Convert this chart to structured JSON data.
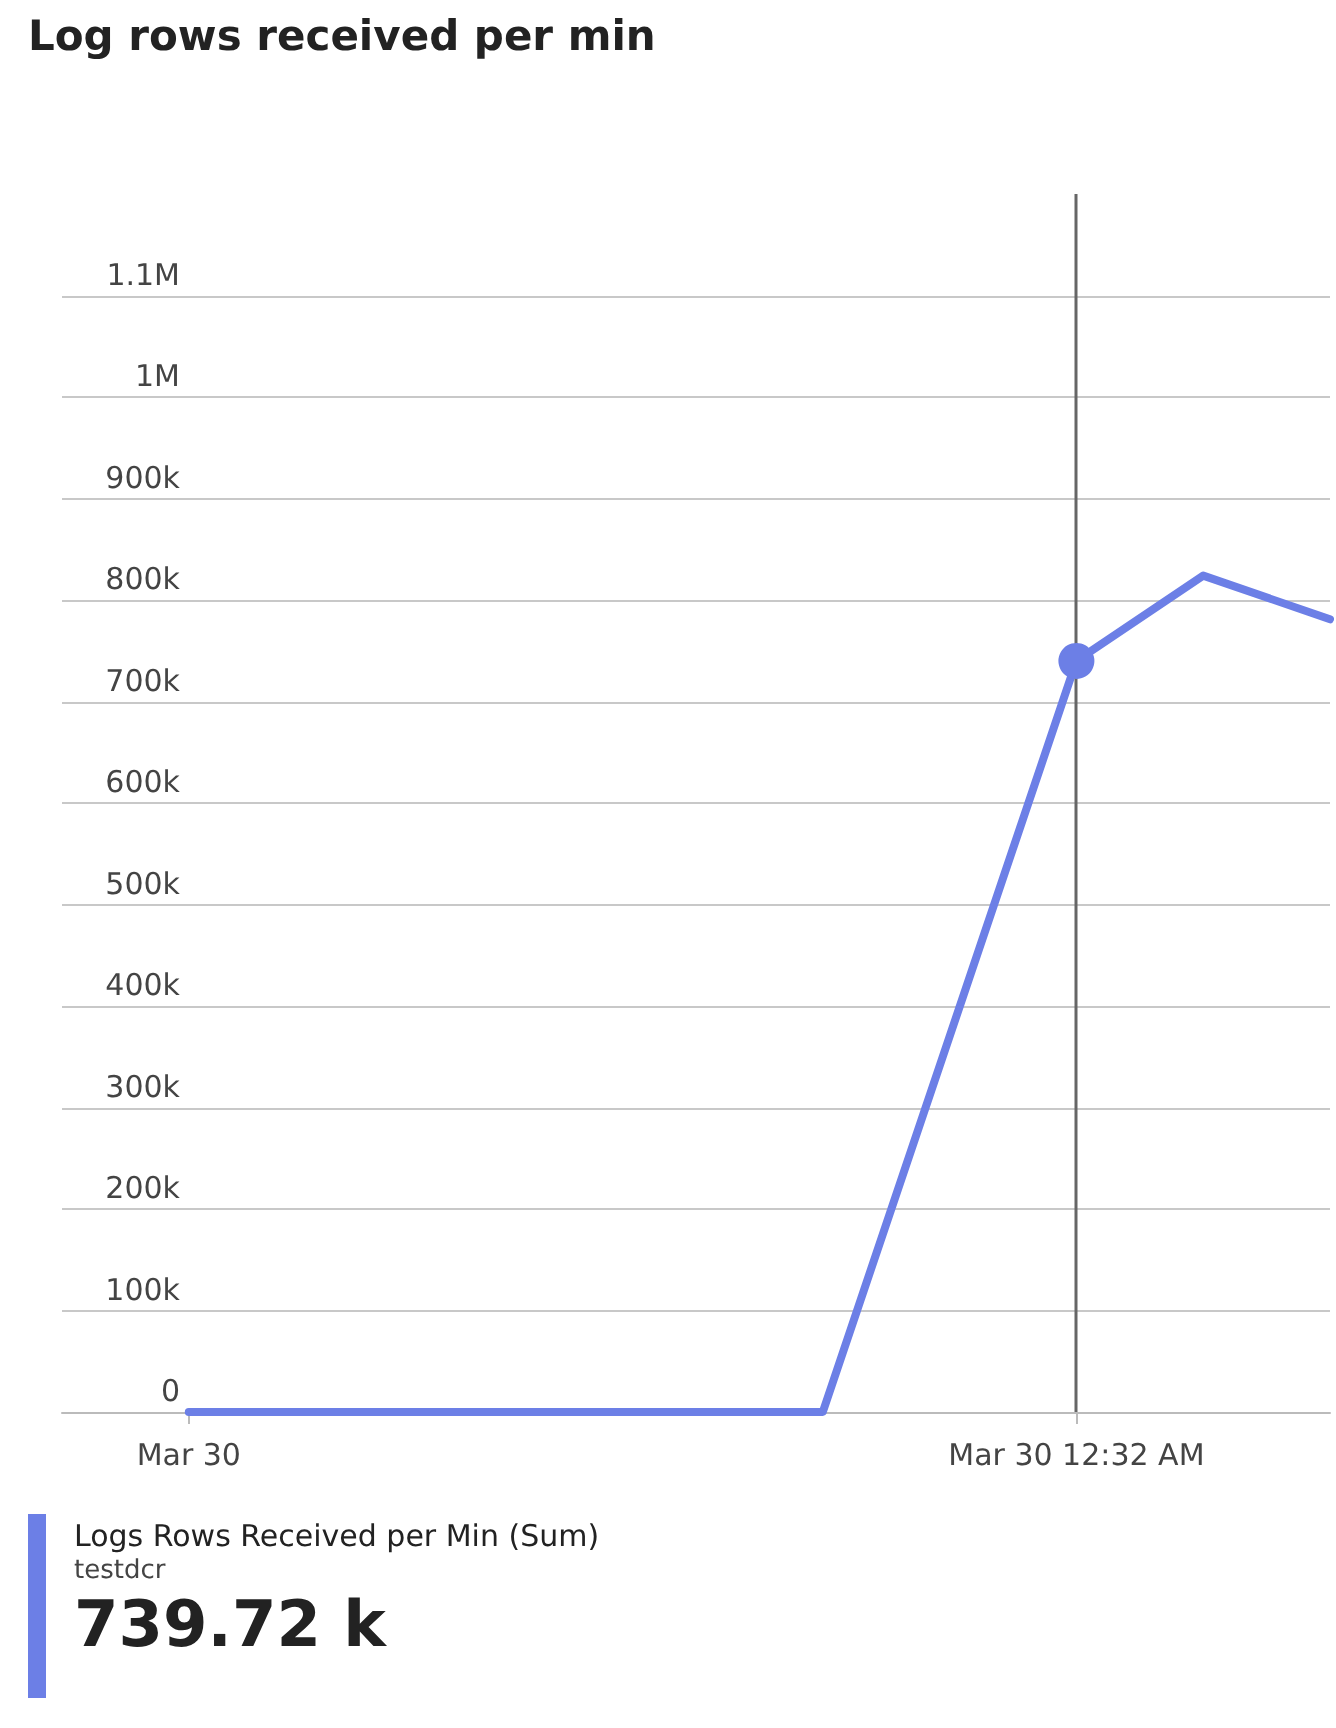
{
  "chart_data": {
    "type": "line",
    "title": "Log rows received per min",
    "categories": [
      null,
      "Mar 30",
      null,
      null,
      null,
      null,
      null,
      null,
      "Mar 30 12:32 AM",
      null,
      null
    ],
    "series": [
      {
        "name": "Logs Rows Received per Min (Sum)",
        "color": "#6c7fe6",
        "values": [
          null,
          0,
          0,
          0,
          0,
          0,
          0,
          null,
          740000,
          824000,
          781000
        ]
      }
    ],
    "ylim": [
      0,
      1200000
    ],
    "yticks": [
      {
        "value": 0,
        "label": "0"
      },
      {
        "value": 100000,
        "label": "100k"
      },
      {
        "value": 200000,
        "label": "200k"
      },
      {
        "value": 300000,
        "label": "300k"
      },
      {
        "value": 400000,
        "label": "400k"
      },
      {
        "value": 500000,
        "label": "500k"
      },
      {
        "value": 600000,
        "label": "600k"
      },
      {
        "value": 700000,
        "label": "700k"
      },
      {
        "value": 800000,
        "label": "800k"
      },
      {
        "value": 900000,
        "label": "900k"
      },
      {
        "value": 1000000,
        "label": "1M"
      },
      {
        "value": 1100000,
        "label": "1.1M"
      }
    ],
    "grid": "y",
    "legend": "bottom",
    "marker": "none",
    "line_style": "solid",
    "ref_lines": [
      {
        "axis": "x",
        "value": "Mar 30 12:32 AM",
        "label": null,
        "color": "#666666"
      }
    ],
    "annotations": [
      "testdcr",
      "739.72 k"
    ]
  }
}
